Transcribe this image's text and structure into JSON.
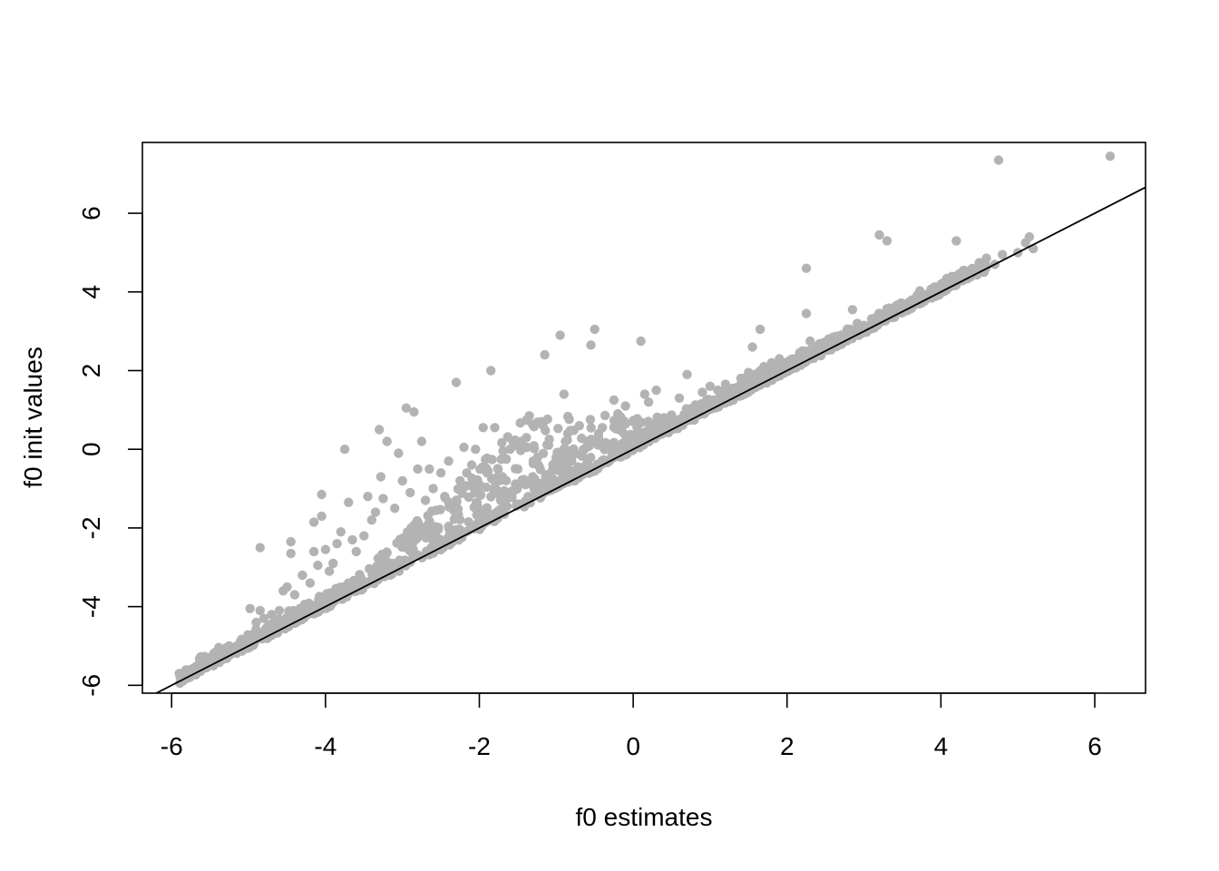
{
  "chart_data": {
    "type": "scatter",
    "title": "",
    "xlabel": "f0 estimates",
    "ylabel": "f0 init values",
    "xlim": [
      -6.38,
      6.66
    ],
    "ylim": [
      -6.2,
      7.8
    ],
    "x_ticks": [
      -6,
      -4,
      -2,
      0,
      2,
      4,
      6
    ],
    "y_ticks": [
      -6,
      -4,
      -2,
      0,
      2,
      4,
      6
    ],
    "x_tick_labels": [
      "-6",
      "-4",
      "-2",
      "0",
      "2",
      "4",
      "6"
    ],
    "y_tick_labels": [
      "-6",
      "-4",
      "-2",
      "0",
      "2",
      "4",
      "6"
    ],
    "grid": false,
    "legend": "none",
    "point_color": "#b3b3b3",
    "line_color": "#000000",
    "reference_line": {
      "intercept": 0,
      "slope": 1
    },
    "series": [
      {
        "values": [
          [
            -5.9,
            -5.7
          ],
          [
            -5.8,
            -5.65
          ],
          [
            -5.75,
            -5.72
          ],
          [
            -5.7,
            -5.6
          ],
          [
            -5.6,
            -5.5
          ],
          [
            -5.5,
            -5.4
          ],
          [
            -5.45,
            -5.42
          ],
          [
            -5.4,
            -5.3
          ],
          [
            -5.35,
            -5.25
          ],
          [
            -5.3,
            -5.2
          ],
          [
            -5.2,
            -5.15
          ],
          [
            -5.1,
            -5.05
          ],
          [
            -5.0,
            -4.95
          ],
          [
            -4.95,
            -4.9
          ],
          [
            -4.9,
            -4.8
          ],
          [
            -4.85,
            -2.5
          ],
          [
            -4.85,
            -4.1
          ],
          [
            -4.9,
            -4.4
          ],
          [
            -4.98,
            -4.05
          ],
          [
            -4.8,
            -4.3
          ],
          [
            -4.7,
            -4.2
          ],
          [
            -4.6,
            -4.1
          ],
          [
            -4.55,
            -3.6
          ],
          [
            -4.5,
            -3.5
          ],
          [
            -4.45,
            -2.35
          ],
          [
            -4.45,
            -2.65
          ],
          [
            -4.4,
            -3.7
          ],
          [
            -4.3,
            -3.2
          ],
          [
            -4.2,
            -3.4
          ],
          [
            -4.15,
            -2.6
          ],
          [
            -4.15,
            -1.85
          ],
          [
            -4.05,
            -1.15
          ],
          [
            -4.05,
            -1.7
          ],
          [
            -4.1,
            -2.95
          ],
          [
            -4.0,
            -2.55
          ],
          [
            -3.95,
            -3.1
          ],
          [
            -3.9,
            -2.9
          ],
          [
            -3.85,
            -2.4
          ],
          [
            -3.8,
            -2.1
          ],
          [
            -3.75,
            0.0
          ],
          [
            -3.7,
            -1.35
          ],
          [
            -3.65,
            -2.3
          ],
          [
            -3.6,
            -2.6
          ],
          [
            -3.5,
            -2.2
          ],
          [
            -3.45,
            -1.2
          ],
          [
            -3.4,
            -1.8
          ],
          [
            -3.35,
            -1.6
          ],
          [
            -3.3,
            0.5
          ],
          [
            -3.28,
            -0.7
          ],
          [
            -3.25,
            -1.25
          ],
          [
            -3.2,
            0.2
          ],
          [
            -3.1,
            -1.5
          ],
          [
            -3.05,
            -0.1
          ],
          [
            -3.0,
            -0.8
          ],
          [
            -2.95,
            1.05
          ],
          [
            -2.9,
            -1.1
          ],
          [
            -2.85,
            0.95
          ],
          [
            -2.8,
            -0.5
          ],
          [
            -2.75,
            0.2
          ],
          [
            -2.7,
            -1.3
          ],
          [
            -2.65,
            -0.5
          ],
          [
            -2.6,
            -1.0
          ],
          [
            -2.5,
            -0.6
          ],
          [
            -2.45,
            -1.2
          ],
          [
            -2.4,
            -0.3
          ],
          [
            -2.3,
            1.7
          ],
          [
            -2.25,
            -0.8
          ],
          [
            -2.2,
            0.05
          ],
          [
            -2.1,
            -0.4
          ],
          [
            -2.05,
            0.0
          ],
          [
            -2.0,
            -0.9
          ],
          [
            -1.95,
            0.55
          ],
          [
            -1.9,
            -0.6
          ],
          [
            -1.85,
            2.0
          ],
          [
            -1.8,
            0.55
          ],
          [
            -1.7,
            -0.7
          ],
          [
            -1.65,
            -0.25
          ],
          [
            -1.6,
            0.0
          ],
          [
            -1.5,
            -0.5
          ],
          [
            -1.45,
            0.2
          ],
          [
            -1.4,
            -0.9
          ],
          [
            -1.35,
            0.85
          ],
          [
            -1.3,
            -0.3
          ],
          [
            -1.2,
            0.7
          ],
          [
            -1.15,
            2.4
          ],
          [
            -1.1,
            0.1
          ],
          [
            -1.0,
            -0.2
          ],
          [
            -0.95,
            2.9
          ],
          [
            -0.9,
            1.4
          ],
          [
            -0.85,
            0.4
          ],
          [
            -0.8,
            -0.3
          ],
          [
            -0.7,
            0.6
          ],
          [
            -0.6,
            0.2
          ],
          [
            -0.55,
            2.65
          ],
          [
            -0.5,
            3.05
          ],
          [
            -0.45,
            0.3
          ],
          [
            -0.4,
            0.55
          ],
          [
            -0.3,
            0.0
          ],
          [
            -0.25,
            1.25
          ],
          [
            -0.2,
            0.9
          ],
          [
            -0.1,
            1.1
          ],
          [
            0.0,
            0.3
          ],
          [
            0.05,
            0.55
          ],
          [
            0.1,
            2.75
          ],
          [
            0.15,
            1.4
          ],
          [
            0.2,
            1.2
          ],
          [
            0.3,
            1.5
          ],
          [
            0.4,
            0.8
          ],
          [
            0.5,
            0.85
          ],
          [
            0.6,
            1.3
          ],
          [
            0.7,
            1.9
          ],
          [
            0.8,
            1.1
          ],
          [
            0.9,
            1.45
          ],
          [
            1.0,
            1.6
          ],
          [
            1.1,
            1.5
          ],
          [
            1.2,
            1.65
          ],
          [
            1.3,
            1.55
          ],
          [
            1.4,
            1.8
          ],
          [
            1.5,
            1.95
          ],
          [
            1.55,
            2.6
          ],
          [
            1.6,
            1.9
          ],
          [
            1.65,
            3.05
          ],
          [
            1.7,
            2.1
          ],
          [
            1.8,
            2.2
          ],
          [
            1.9,
            2.3
          ],
          [
            2.0,
            2.2
          ],
          [
            2.1,
            2.3
          ],
          [
            2.2,
            2.5
          ],
          [
            2.25,
            4.6
          ],
          [
            2.25,
            3.45
          ],
          [
            2.3,
            2.75
          ],
          [
            2.4,
            2.6
          ],
          [
            2.5,
            2.65
          ],
          [
            2.6,
            2.85
          ],
          [
            2.7,
            2.85
          ],
          [
            2.85,
            3.55
          ],
          [
            2.9,
            3.0
          ],
          [
            3.0,
            3.15
          ],
          [
            3.1,
            3.2
          ],
          [
            3.2,
            5.45
          ],
          [
            3.3,
            5.3
          ],
          [
            3.35,
            3.4
          ],
          [
            3.5,
            3.55
          ],
          [
            3.6,
            3.65
          ],
          [
            3.7,
            3.75
          ],
          [
            3.8,
            3.85
          ],
          [
            3.9,
            3.95
          ],
          [
            4.0,
            4.05
          ],
          [
            4.1,
            4.15
          ],
          [
            4.2,
            5.3
          ],
          [
            4.2,
            4.4
          ],
          [
            4.3,
            4.35
          ],
          [
            4.7,
            4.7
          ],
          [
            4.75,
            7.35
          ],
          [
            4.8,
            4.95
          ],
          [
            5.0,
            5.0
          ],
          [
            5.1,
            5.25
          ],
          [
            5.15,
            5.4
          ],
          [
            5.2,
            5.1
          ],
          [
            6.2,
            7.45
          ]
        ]
      }
    ]
  }
}
